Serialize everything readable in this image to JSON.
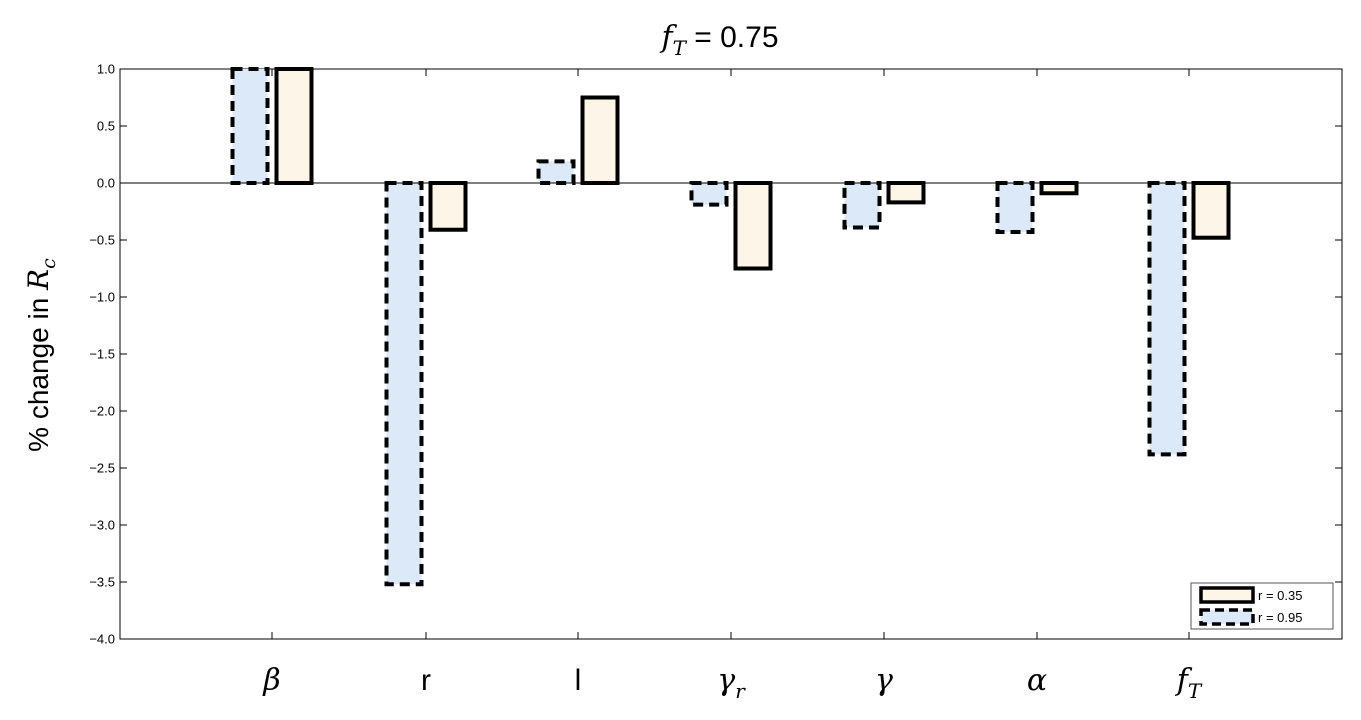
{
  "chart_data": {
    "type": "bar",
    "title": "f_T = 0.75",
    "title_parts": {
      "var": "f",
      "sub": "T",
      "rest": " = 0.75"
    },
    "ylabel": "% change in R_c",
    "ylabel_parts": {
      "text": "% change in ",
      "var": "R",
      "sub": "c"
    },
    "xlabel": "",
    "ylim": [
      -4.0,
      1.0
    ],
    "yticks": [
      "1.0",
      "0.5",
      "0.0",
      "-0.5",
      "-1.0",
      "-1.5",
      "-2.0",
      "-2.5",
      "-3.0",
      "-3.5",
      "-4.0"
    ],
    "categories": [
      {
        "main": "β",
        "sub": "",
        "italic": true
      },
      {
        "main": "r",
        "sub": "",
        "italic": false
      },
      {
        "main": "l",
        "sub": "",
        "italic": false
      },
      {
        "main": "γ",
        "sub": "r",
        "italic": true
      },
      {
        "main": "γ",
        "sub": "",
        "italic": true
      },
      {
        "main": "α",
        "sub": "",
        "italic": true
      },
      {
        "main": "f",
        "sub": "T",
        "italic": true
      }
    ],
    "series": [
      {
        "name": "r = 0.95",
        "values": [
          1.0,
          -3.52,
          0.19,
          -0.19,
          -0.39,
          -0.43,
          -2.38
        ],
        "color": "#dce9f9",
        "stroke": "dashed"
      },
      {
        "name": "r = 0.35",
        "values": [
          1.0,
          -0.41,
          0.75,
          -0.75,
          -0.17,
          -0.09,
          -0.48
        ],
        "color": "#fdf5e8",
        "stroke": "solid"
      }
    ],
    "legend_order": [
      "r = 0.35",
      "r = 0.95"
    ],
    "legend_position": "bottom-right",
    "grid": false
  }
}
